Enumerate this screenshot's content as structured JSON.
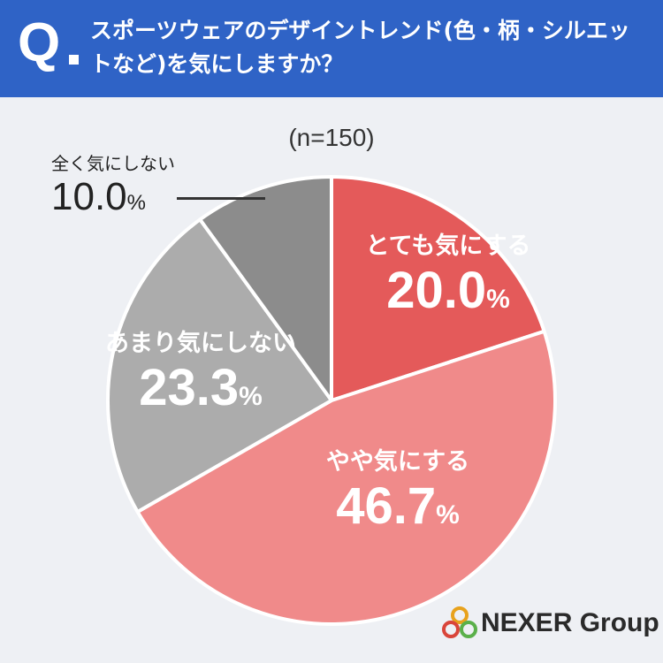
{
  "header": {
    "q_mark": "Q",
    "question": "スポーツウェアのデザイントレンド(色・柄・シルエットなど)を気にしますか？",
    "color": "#2f63c6"
  },
  "sample_label": "(n=150)",
  "chart_data": {
    "type": "pie",
    "categories": [
      "とても気にする",
      "やや気にする",
      "あまり気にしない",
      "全く気にしない"
    ],
    "values": [
      20.0,
      46.7,
      23.3,
      10.0
    ],
    "value_labels": [
      "20.0",
      "46.7",
      "23.3",
      "10.0"
    ],
    "unit": "%",
    "colors": [
      "#e45a5a",
      "#f08a8a",
      "#acacac",
      "#8c8c8c"
    ],
    "start": "12 o'clock",
    "direction": "clockwise"
  },
  "logo": {
    "text": "NEXER Group"
  }
}
